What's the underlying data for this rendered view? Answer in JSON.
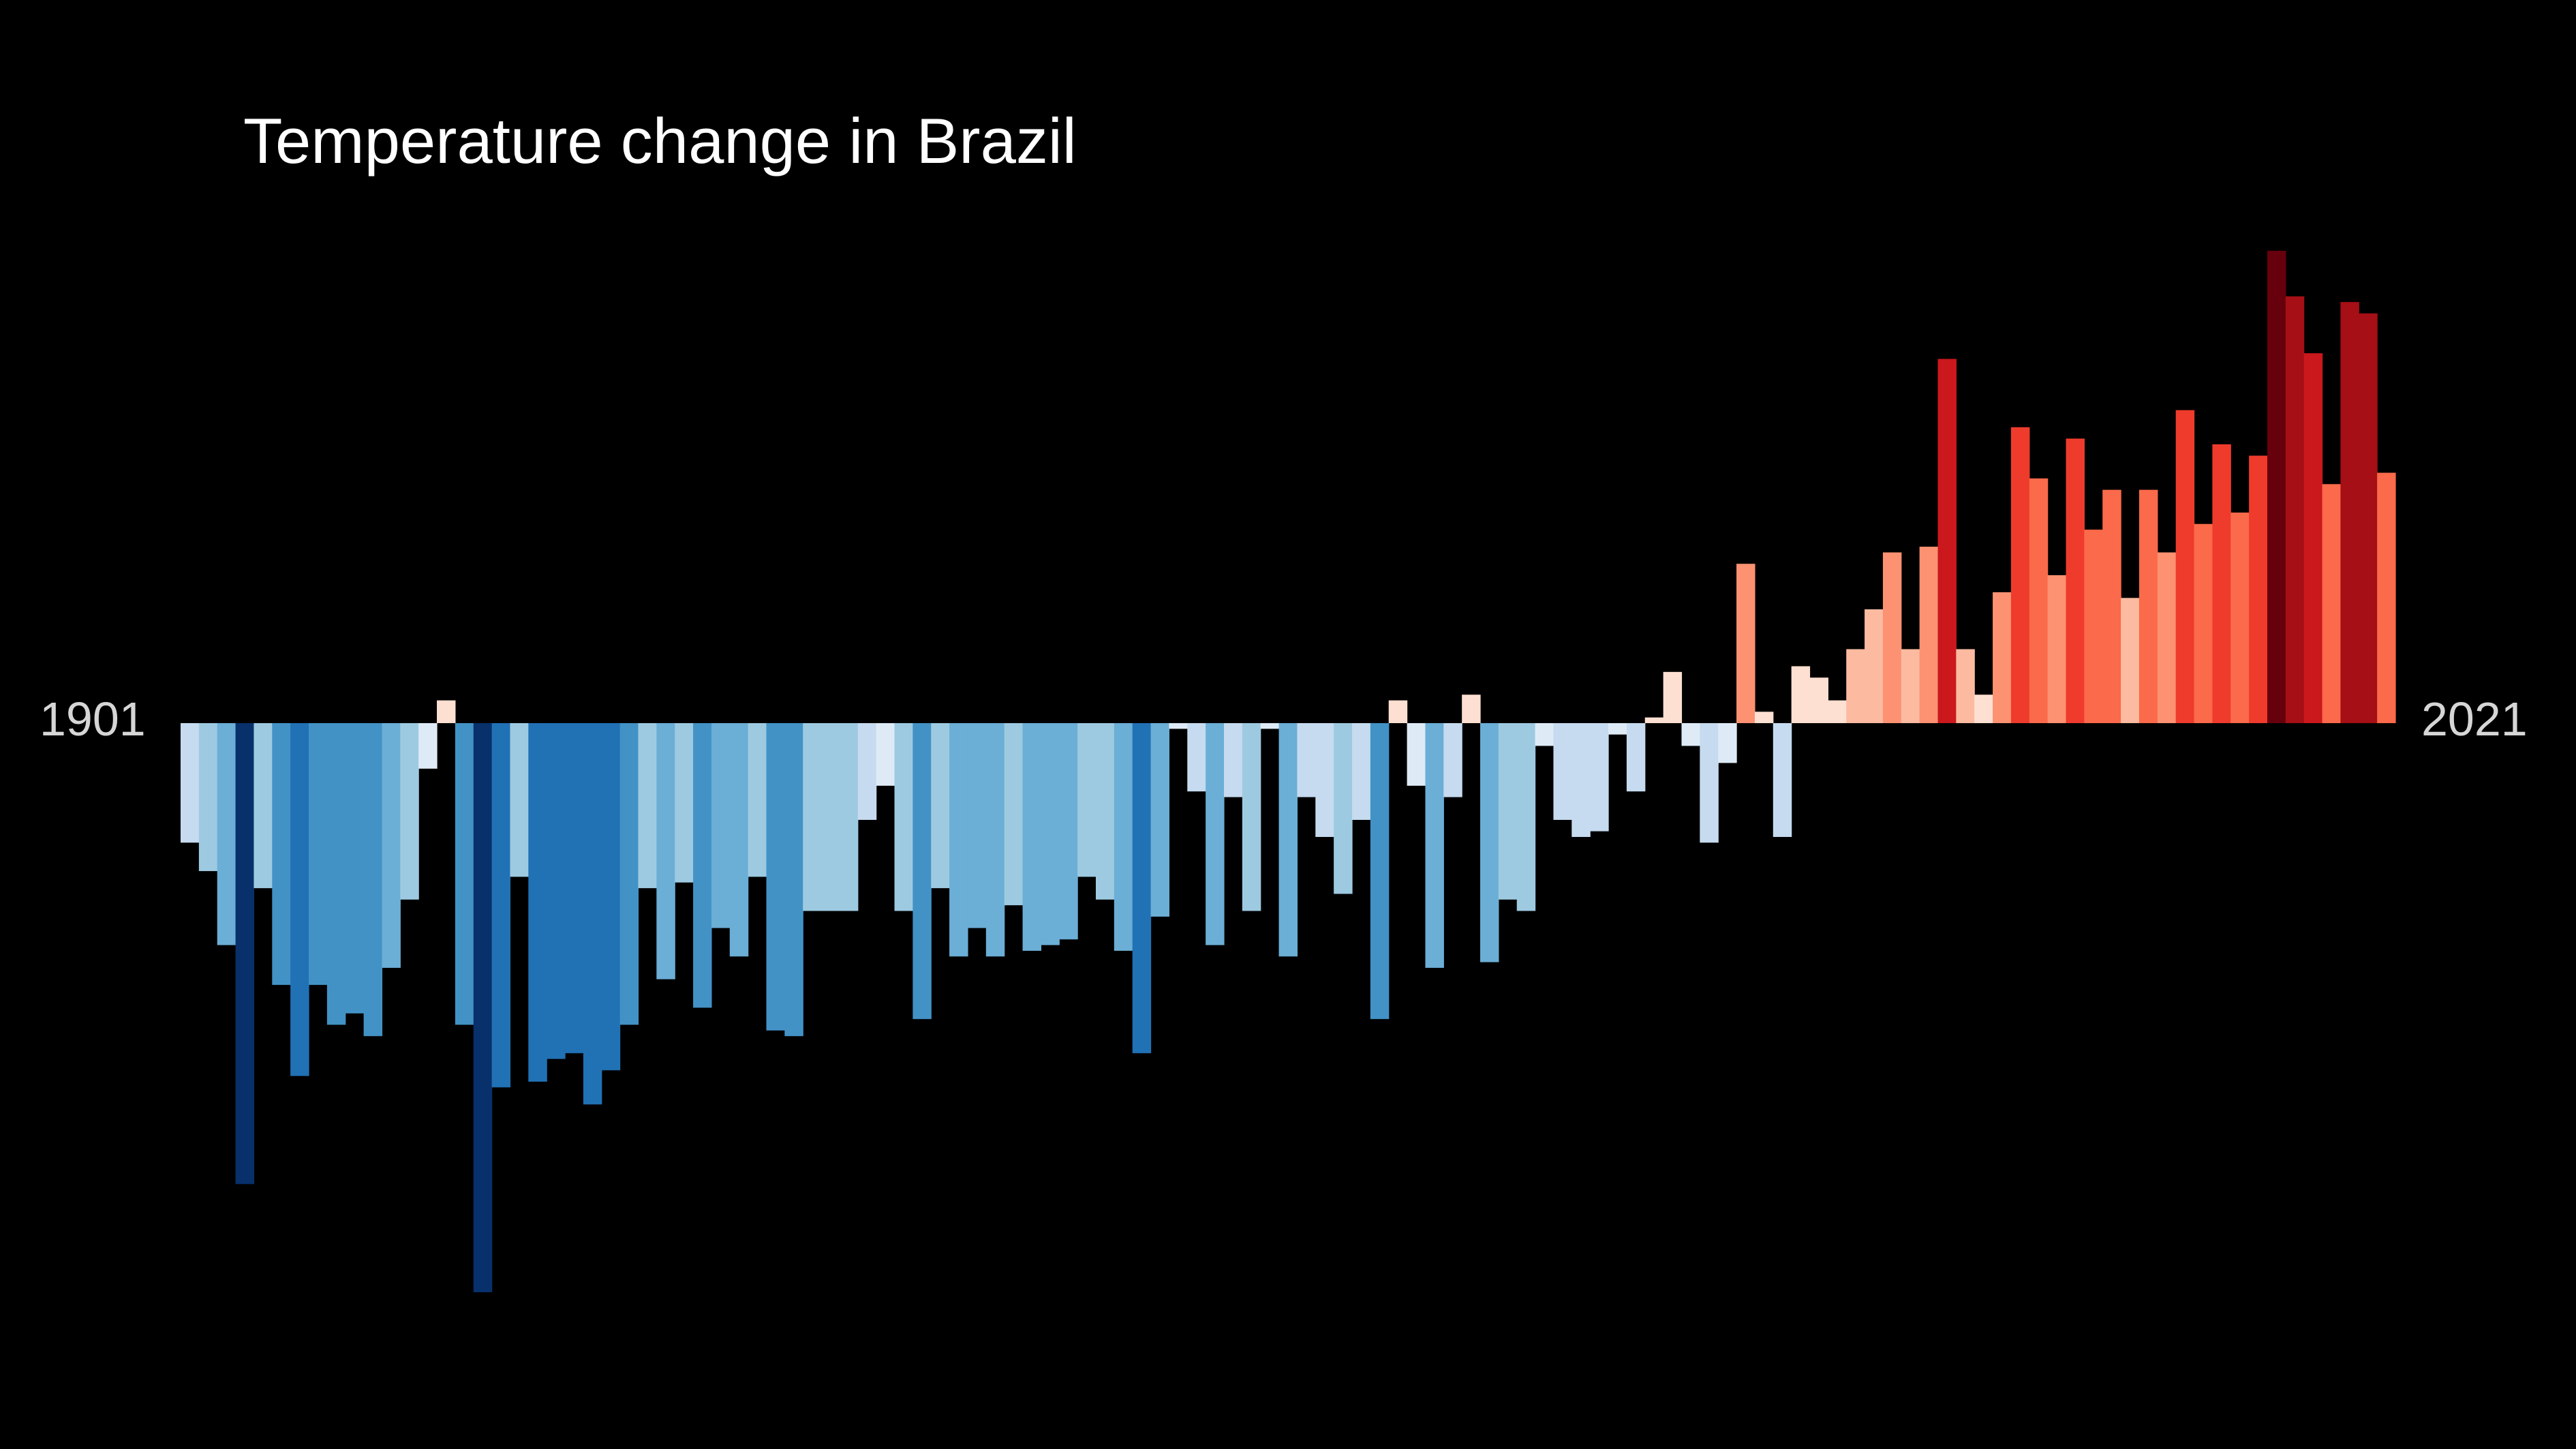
{
  "chart_data": {
    "type": "bar",
    "title": "Temperature change in Brazil",
    "start_label": "1901",
    "end_label": "2021",
    "xlabel": "",
    "ylabel": "",
    "grid": false,
    "legend": "none",
    "ylim": [
      -1.0,
      0.82
    ],
    "categories": [
      1901,
      1902,
      1903,
      1904,
      1905,
      1906,
      1907,
      1908,
      1909,
      1910,
      1911,
      1912,
      1913,
      1914,
      1915,
      1916,
      1917,
      1918,
      1919,
      1920,
      1921,
      1922,
      1923,
      1924,
      1925,
      1926,
      1927,
      1928,
      1929,
      1930,
      1931,
      1932,
      1933,
      1934,
      1935,
      1936,
      1937,
      1938,
      1939,
      1940,
      1941,
      1942,
      1943,
      1944,
      1945,
      1946,
      1947,
      1948,
      1949,
      1950,
      1951,
      1952,
      1953,
      1954,
      1955,
      1956,
      1957,
      1958,
      1959,
      1960,
      1961,
      1962,
      1963,
      1964,
      1965,
      1966,
      1967,
      1968,
      1969,
      1970,
      1971,
      1972,
      1973,
      1974,
      1975,
      1976,
      1977,
      1978,
      1979,
      1980,
      1981,
      1982,
      1983,
      1984,
      1985,
      1986,
      1987,
      1988,
      1989,
      1990,
      1991,
      1992,
      1993,
      1994,
      1995,
      1996,
      1997,
      1998,
      1999,
      2000,
      2001,
      2002,
      2003,
      2004,
      2005,
      2006,
      2007,
      2008,
      2009,
      2010,
      2011,
      2012,
      2013,
      2014,
      2015,
      2016,
      2017,
      2018,
      2019,
      2020,
      2021
    ],
    "values": [
      -0.21,
      -0.26,
      -0.39,
      -0.81,
      -0.29,
      -0.46,
      -0.62,
      -0.46,
      -0.53,
      -0.51,
      -0.55,
      -0.43,
      -0.31,
      -0.08,
      0.04,
      -0.53,
      -1.0,
      -0.64,
      -0.27,
      -0.63,
      -0.59,
      -0.58,
      -0.67,
      -0.61,
      -0.53,
      -0.29,
      -0.45,
      -0.28,
      -0.5,
      -0.36,
      -0.41,
      -0.27,
      -0.54,
      -0.55,
      -0.33,
      -0.33,
      -0.33,
      -0.17,
      -0.11,
      -0.33,
      -0.52,
      -0.29,
      -0.41,
      -0.36,
      -0.41,
      -0.32,
      -0.4,
      -0.39,
      -0.38,
      -0.27,
      -0.31,
      -0.4,
      -0.58,
      -0.34,
      -0.01,
      -0.12,
      -0.39,
      -0.13,
      -0.33,
      -0.01,
      -0.41,
      -0.13,
      -0.2,
      -0.3,
      -0.17,
      -0.52,
      0.04,
      -0.11,
      -0.43,
      -0.13,
      0.05,
      -0.42,
      -0.31,
      -0.33,
      -0.04,
      -0.17,
      -0.2,
      -0.19,
      -0.02,
      -0.12,
      0.01,
      0.09,
      -0.04,
      -0.21,
      -0.07,
      0.28,
      0.02,
      -0.2,
      0.1,
      0.08,
      0.04,
      0.13,
      0.2,
      0.3,
      0.13,
      0.31,
      0.64,
      0.13,
      0.05,
      0.23,
      0.52,
      0.43,
      0.26,
      0.5,
      0.34,
      0.41,
      0.22,
      0.41,
      0.3,
      0.55,
      0.35,
      0.49,
      0.37,
      0.47,
      0.83,
      0.75,
      0.65,
      0.42,
      0.74,
      0.72,
      0.44
    ]
  },
  "colors": {
    "background": "#000000",
    "title": "#ffffff",
    "year_labels": "#d6d6d6",
    "scale": [
      "#08306b",
      "#08519c",
      "#2171b5",
      "#4292c6",
      "#6baed6",
      "#9ecae1",
      "#c6dbef",
      "#deebf7",
      "#fee0d2",
      "#fcbba1",
      "#fc9272",
      "#fb6a4a",
      "#ef3b2c",
      "#cb181d",
      "#a50f15",
      "#67000d"
    ]
  }
}
